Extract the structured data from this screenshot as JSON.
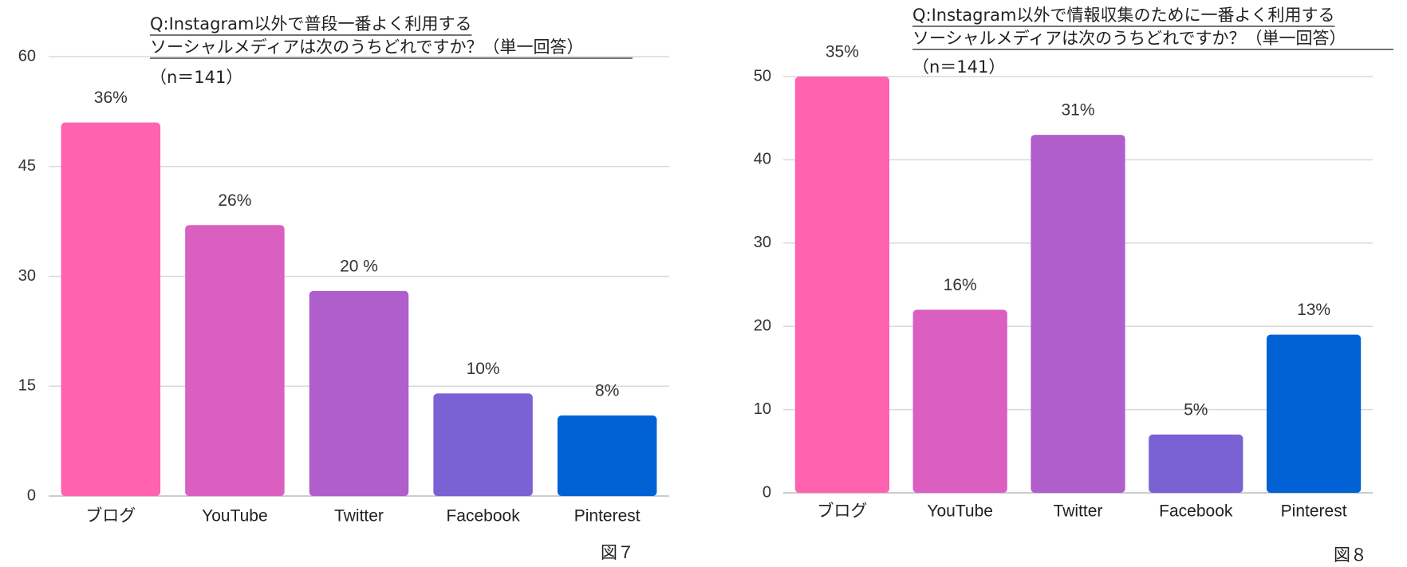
{
  "chart_data": [
    {
      "type": "bar",
      "title": [
        "Q:Instagram以外で普段一番よく利用する",
        "ソーシャルメディアは次のうちどれですか？（単一回答）"
      ],
      "subtitle": "（n＝141）",
      "caption": "図７",
      "categories": [
        "ブログ",
        "YouTube",
        "Twitter",
        "Facebook",
        "Pinterest"
      ],
      "values": [
        51,
        37,
        28,
        14,
        11
      ],
      "data_labels": [
        {
          "value": 36,
          "label": "36%"
        },
        {
          "value": 26,
          "label": "26%"
        },
        {
          "value": 20,
          "label": "20 %"
        },
        {
          "value": 10,
          "label": "10%"
        },
        {
          "value": 8,
          "label": "8%"
        }
      ],
      "colors": [
        "#ff63b0",
        "#db5fc0",
        "#b05ecc",
        "#7b62d4",
        "#0062d4"
      ],
      "ylim": [
        0,
        60
      ],
      "yticks": [
        0,
        15,
        30,
        45,
        60
      ],
      "grid": true
    },
    {
      "type": "bar",
      "title": [
        "Q:Instagram以外で情報収集のために一番よく利用する",
        "ソーシャルメディアは次のうちどれですか？（単一回答）"
      ],
      "subtitle": "（n＝141）",
      "caption": "図８",
      "categories": [
        "ブログ",
        "YouTube",
        "Twitter",
        "Facebook",
        "Pinterest"
      ],
      "values": [
        50,
        22,
        43,
        7,
        19
      ],
      "data_labels": [
        {
          "value": 35,
          "label": "35%"
        },
        {
          "value": 16,
          "label": "16%"
        },
        {
          "value": 31,
          "label": "31%"
        },
        {
          "value": 5,
          "label": "5%"
        },
        {
          "value": 13,
          "label": "13%"
        }
      ],
      "colors": [
        "#ff63b0",
        "#db5fc0",
        "#b05ecc",
        "#7b62d4",
        "#0062d4"
      ],
      "ylim": [
        0,
        50
      ],
      "yticks": [
        0,
        10,
        20,
        30,
        40,
        50
      ],
      "grid": true
    }
  ]
}
